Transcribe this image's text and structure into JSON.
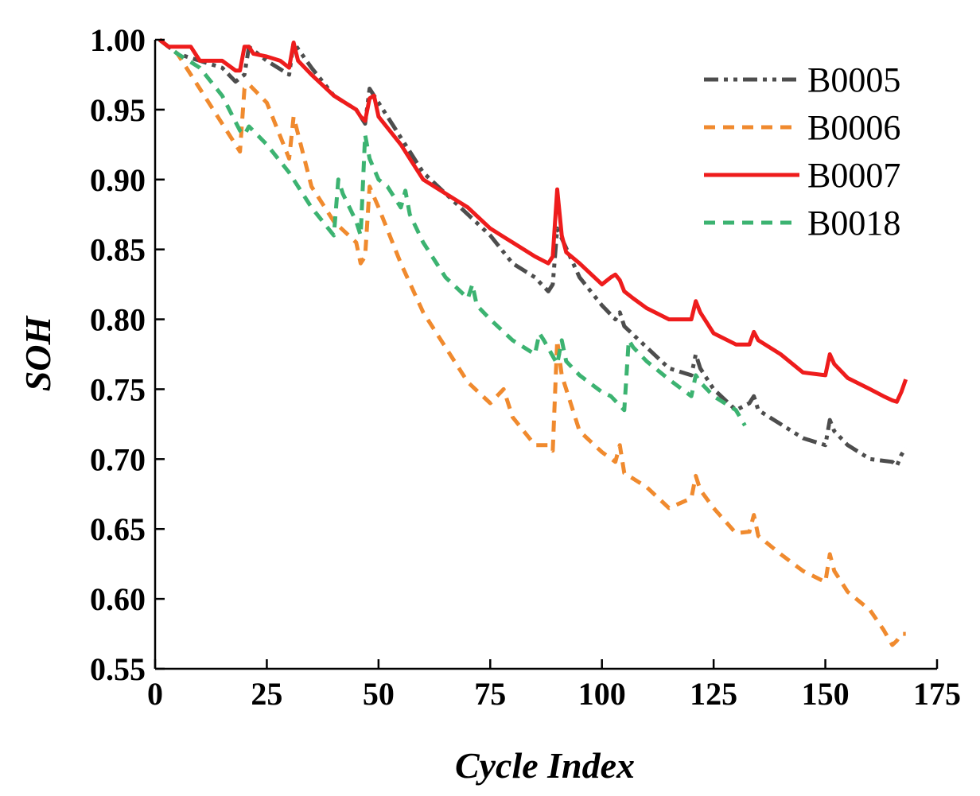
{
  "chart_data": {
    "type": "line",
    "title": "",
    "xlabel": "Cycle Index",
    "ylabel": "SOH",
    "xlim": [
      0,
      175
    ],
    "ylim": [
      0.55,
      1.0
    ],
    "x_ticks": [
      0,
      25,
      50,
      75,
      100,
      125,
      150,
      175
    ],
    "x_tick_labels": [
      "0",
      "25",
      "50",
      "75",
      "100",
      "125",
      "150",
      "175"
    ],
    "y_ticks": [
      0.55,
      0.6,
      0.65,
      0.7,
      0.75,
      0.8,
      0.85,
      0.9,
      0.95,
      1.0
    ],
    "y_tick_labels": [
      "0.55",
      "0.60",
      "0.65",
      "0.70",
      "0.75",
      "0.80",
      "0.85",
      "0.90",
      "0.95",
      "1.00"
    ],
    "grid": false,
    "legend_position": "top-right",
    "series": [
      {
        "name": "B0005",
        "color": "#4d4d4d",
        "dash": "dash-dot-dot",
        "x": [
          1,
          5,
          10,
          15,
          18,
          20,
          21,
          25,
          30,
          31,
          35,
          40,
          45,
          47,
          48,
          50,
          55,
          60,
          65,
          70,
          75,
          80,
          85,
          88,
          89,
          90,
          95,
          100,
          103,
          104,
          105,
          110,
          115,
          120,
          121,
          122,
          125,
          130,
          133,
          134,
          135,
          140,
          145,
          150,
          151,
          152,
          155,
          160,
          165,
          166,
          167,
          168
        ],
        "y": [
          1.0,
          0.99,
          0.985,
          0.98,
          0.97,
          0.975,
          0.995,
          0.985,
          0.975,
          0.998,
          0.98,
          0.96,
          0.95,
          0.94,
          0.965,
          0.955,
          0.93,
          0.905,
          0.89,
          0.875,
          0.86,
          0.84,
          0.83,
          0.82,
          0.825,
          0.865,
          0.83,
          0.81,
          0.8,
          0.805,
          0.795,
          0.78,
          0.765,
          0.76,
          0.775,
          0.765,
          0.75,
          0.735,
          0.74,
          0.745,
          0.735,
          0.725,
          0.715,
          0.71,
          0.728,
          0.72,
          0.71,
          0.7,
          0.698,
          0.695,
          0.703,
          0.708
        ]
      },
      {
        "name": "B0006",
        "color": "#f08a2e",
        "dash": "dash",
        "x": [
          1,
          5,
          10,
          15,
          19,
          20,
          21,
          25,
          30,
          31,
          35,
          40,
          45,
          46,
          47,
          48,
          50,
          55,
          60,
          65,
          70,
          75,
          78,
          80,
          85,
          88,
          89,
          90,
          91,
          95,
          100,
          103,
          104,
          105,
          110,
          115,
          120,
          121,
          122,
          125,
          130,
          133,
          134,
          135,
          140,
          145,
          150,
          151,
          152,
          155,
          160,
          163,
          165,
          166,
          167,
          168
        ],
        "y": [
          1.0,
          0.99,
          0.965,
          0.94,
          0.92,
          0.965,
          0.968,
          0.955,
          0.915,
          0.945,
          0.895,
          0.87,
          0.855,
          0.84,
          0.845,
          0.895,
          0.88,
          0.84,
          0.805,
          0.78,
          0.755,
          0.74,
          0.75,
          0.73,
          0.71,
          0.71,
          0.706,
          0.785,
          0.76,
          0.72,
          0.705,
          0.698,
          0.71,
          0.69,
          0.68,
          0.665,
          0.672,
          0.688,
          0.678,
          0.665,
          0.647,
          0.648,
          0.66,
          0.645,
          0.632,
          0.62,
          0.612,
          0.632,
          0.62,
          0.605,
          0.592,
          0.578,
          0.567,
          0.57,
          0.575,
          0.575
        ]
      },
      {
        "name": "B0007",
        "color": "#ee1c1c",
        "dash": "solid",
        "x": [
          1,
          3,
          5,
          8,
          10,
          15,
          18,
          19,
          20,
          21,
          22,
          25,
          28,
          30,
          31,
          32,
          35,
          40,
          45,
          46,
          47,
          48,
          49,
          50,
          55,
          60,
          65,
          70,
          75,
          80,
          85,
          88,
          89,
          90,
          91,
          92,
          95,
          100,
          102,
          103,
          104,
          105,
          107,
          110,
          115,
          120,
          121,
          122,
          125,
          130,
          133,
          134,
          135,
          140,
          145,
          150,
          151,
          152,
          155,
          160,
          163,
          165,
          166,
          167,
          168
        ],
        "y": [
          1.0,
          0.995,
          0.995,
          0.995,
          0.985,
          0.985,
          0.978,
          0.978,
          0.995,
          0.995,
          0.99,
          0.988,
          0.985,
          0.98,
          0.998,
          0.985,
          0.975,
          0.96,
          0.95,
          0.945,
          0.942,
          0.958,
          0.96,
          0.945,
          0.925,
          0.9,
          0.89,
          0.88,
          0.865,
          0.855,
          0.845,
          0.84,
          0.845,
          0.893,
          0.86,
          0.848,
          0.84,
          0.825,
          0.83,
          0.832,
          0.828,
          0.82,
          0.815,
          0.808,
          0.8,
          0.8,
          0.813,
          0.805,
          0.79,
          0.782,
          0.782,
          0.791,
          0.785,
          0.775,
          0.762,
          0.76,
          0.775,
          0.768,
          0.758,
          0.75,
          0.745,
          0.742,
          0.741,
          0.748,
          0.757
        ]
      },
      {
        "name": "B0018",
        "color": "#3cb371",
        "dash": "dash",
        "x": [
          1,
          5,
          10,
          15,
          19,
          20,
          21,
          25,
          30,
          35,
          40,
          41,
          42,
          45,
          46,
          47,
          48,
          50,
          52,
          55,
          56,
          57,
          60,
          65,
          70,
          71,
          72,
          75,
          80,
          85,
          86,
          87,
          90,
          91,
          92,
          95,
          100,
          102,
          105,
          106,
          107,
          110,
          115,
          120,
          121,
          122,
          125,
          130,
          132
        ],
        "y": [
          1.0,
          0.99,
          0.98,
          0.96,
          0.935,
          0.932,
          0.938,
          0.925,
          0.905,
          0.88,
          0.86,
          0.9,
          0.89,
          0.87,
          0.86,
          0.932,
          0.915,
          0.9,
          0.895,
          0.88,
          0.892,
          0.875,
          0.855,
          0.83,
          0.815,
          0.825,
          0.81,
          0.8,
          0.785,
          0.775,
          0.79,
          0.785,
          0.768,
          0.785,
          0.77,
          0.76,
          0.748,
          0.745,
          0.735,
          0.785,
          0.78,
          0.77,
          0.757,
          0.745,
          0.76,
          0.755,
          0.745,
          0.735,
          0.724
        ]
      }
    ]
  }
}
